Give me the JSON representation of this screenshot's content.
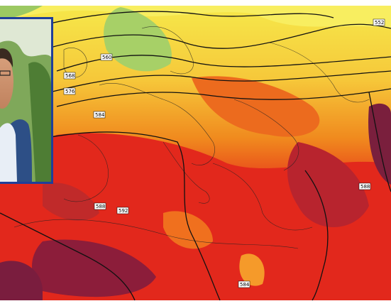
{
  "map": {
    "contour_labels": [
      "552",
      "560",
      "568",
      "576",
      "584",
      "588",
      "592",
      "588",
      "584"
    ]
  }
}
